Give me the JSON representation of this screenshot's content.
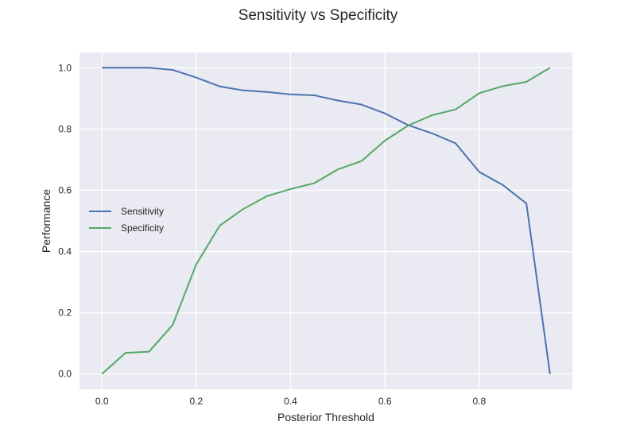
{
  "chart_data": {
    "type": "line",
    "title": "Sensitivity vs Specificity",
    "xlabel": "Posterior Threshold",
    "ylabel": "Performance",
    "xlim": [
      -0.0475,
      0.9975
    ],
    "ylim": [
      -0.05,
      1.05
    ],
    "x_ticks": [
      "0.0",
      "0.2",
      "0.4",
      "0.6",
      "0.8"
    ],
    "y_ticks": [
      "0.0",
      "0.2",
      "0.4",
      "0.6",
      "0.8",
      "1.0"
    ],
    "grid": true,
    "legend_position": "center-left",
    "x": [
      0.0,
      0.05,
      0.1,
      0.15,
      0.2,
      0.25,
      0.3,
      0.35,
      0.4,
      0.45,
      0.5,
      0.55,
      0.6,
      0.65,
      0.7,
      0.75,
      0.8,
      0.85,
      0.9,
      0.95
    ],
    "series": [
      {
        "name": "Sensitivity",
        "color": "#4c72b0",
        "values": [
          1.0,
          1.0,
          1.0,
          0.993,
          0.968,
          0.939,
          0.926,
          0.921,
          0.913,
          0.91,
          0.893,
          0.88,
          0.851,
          0.812,
          0.786,
          0.753,
          0.66,
          0.617,
          0.557,
          0.0
        ]
      },
      {
        "name": "Specificity",
        "color": "#55a868",
        "values": [
          0.0,
          0.069,
          0.073,
          0.16,
          0.358,
          0.485,
          0.539,
          0.581,
          0.604,
          0.623,
          0.668,
          0.695,
          0.762,
          0.812,
          0.845,
          0.864,
          0.917,
          0.94,
          0.954,
          1.0
        ]
      }
    ]
  }
}
